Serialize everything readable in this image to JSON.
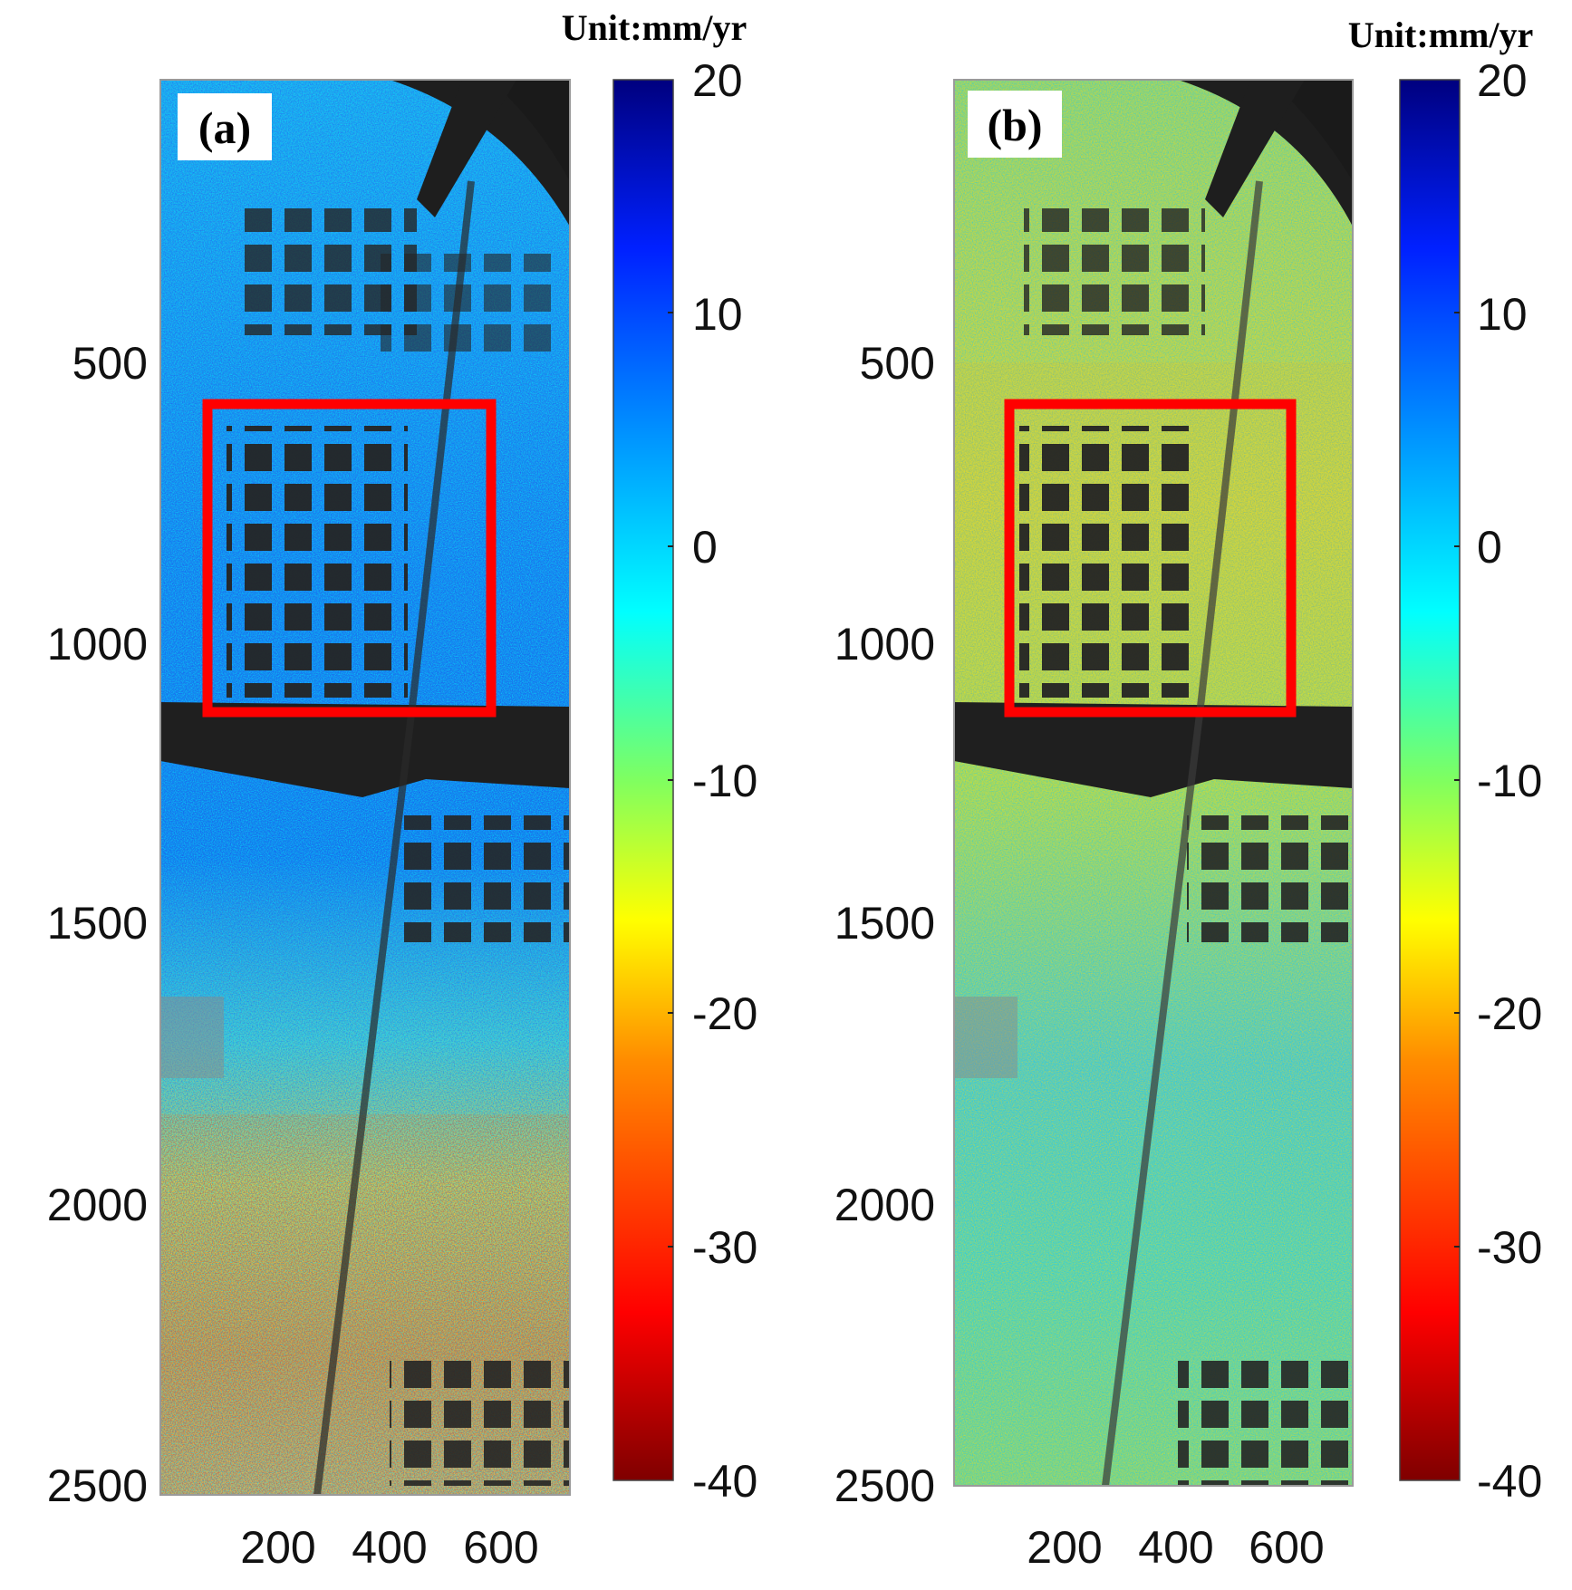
{
  "figure": {
    "unit_label": "Unit:mm/yr",
    "panels": [
      {
        "tag": "(a)",
        "name": "panel-a"
      },
      {
        "tag": "(b)",
        "name": "panel-b"
      }
    ],
    "y_ticks": [
      "500",
      "1000",
      "1500",
      "2000",
      "2500"
    ],
    "x_ticks": [
      "200",
      "400",
      "600"
    ],
    "colorbar_ticks": [
      "20",
      "10",
      "0",
      "-10",
      "-20",
      "-30",
      "-40"
    ],
    "colorbar_range": [
      -40,
      20
    ],
    "colormap": [
      "#7f0000",
      "#ff0000",
      "#ff9a00",
      "#ffff00",
      "#7fff7f",
      "#00ffff",
      "#0080ff",
      "#0000ff",
      "#00007f"
    ],
    "highlight_color": "#ff0000",
    "background_colors": {
      "water": "#1f1f1f",
      "land_a": "#3ab0e0",
      "land_b": "#8fd6a0"
    }
  }
}
